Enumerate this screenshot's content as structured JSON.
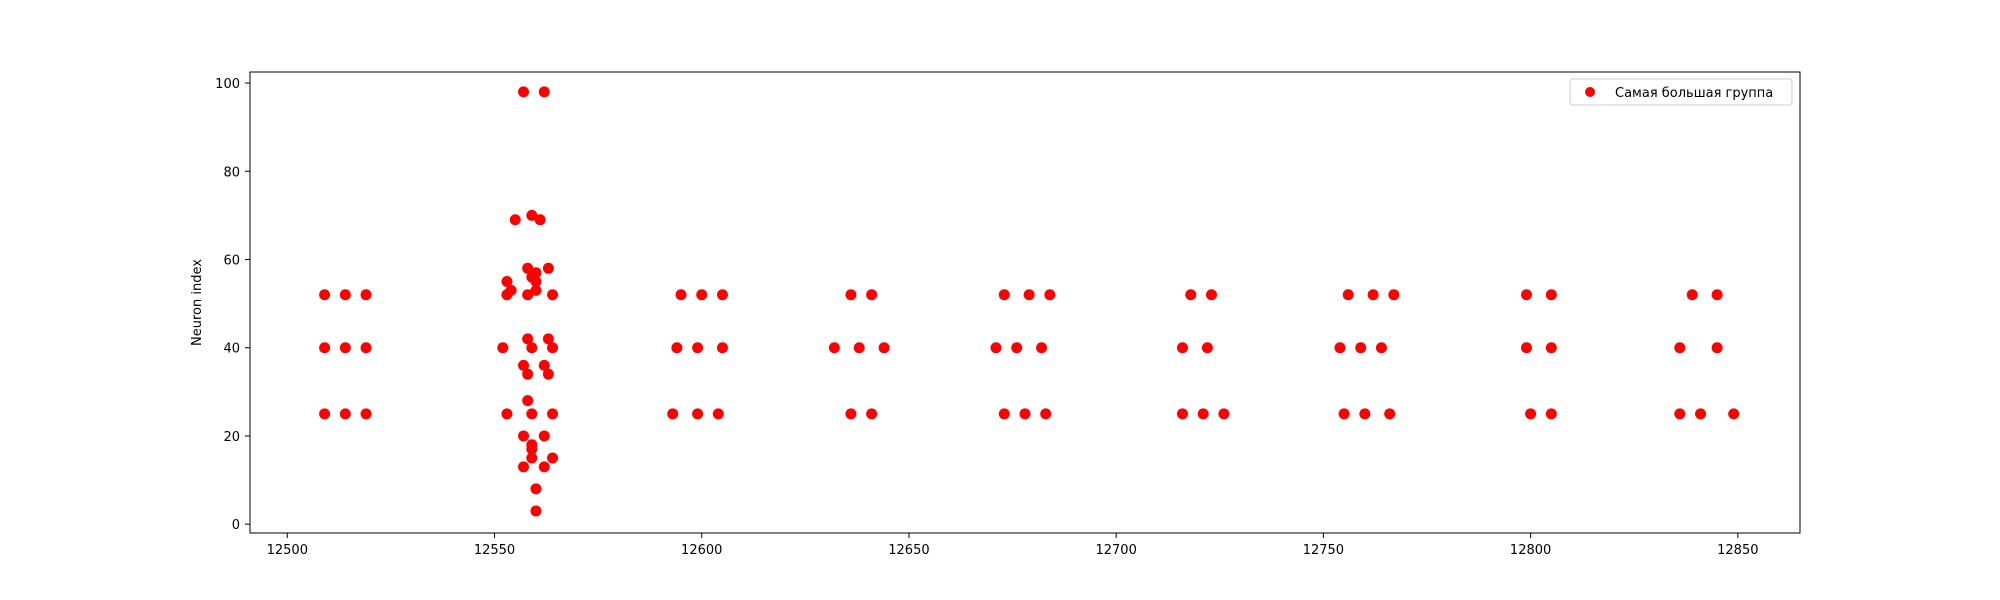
{
  "chart_data": {
    "type": "scatter",
    "title": "",
    "xlabel": "",
    "ylabel": "Neuron index",
    "xlim": [
      12491,
      12865
    ],
    "ylim": [
      -2,
      102.5
    ],
    "xticks": [
      12500,
      12550,
      12600,
      12650,
      12700,
      12750,
      12800,
      12850
    ],
    "yticks": [
      0,
      20,
      40,
      60,
      80,
      100
    ],
    "grid": false,
    "legend": {
      "position": "top-right"
    },
    "series": [
      {
        "name": "Самая большая группа",
        "color": "#ff0000",
        "marker": "circle",
        "points": [
          [
            12509,
            52
          ],
          [
            12514,
            52
          ],
          [
            12519,
            52
          ],
          [
            12509,
            40
          ],
          [
            12514,
            40
          ],
          [
            12519,
            40
          ],
          [
            12509,
            25
          ],
          [
            12514,
            25
          ],
          [
            12519,
            25
          ],
          [
            12557,
            98
          ],
          [
            12562,
            98
          ],
          [
            12559,
            70
          ],
          [
            12561,
            69
          ],
          [
            12555,
            69
          ],
          [
            12558,
            58
          ],
          [
            12563,
            58
          ],
          [
            12559,
            56
          ],
          [
            12560,
            57
          ],
          [
            12560,
            55
          ],
          [
            12553,
            55
          ],
          [
            12560,
            53
          ],
          [
            12554,
            53
          ],
          [
            12553,
            52
          ],
          [
            12558,
            52
          ],
          [
            12564,
            52
          ],
          [
            12558,
            42
          ],
          [
            12563,
            42
          ],
          [
            12552,
            40
          ],
          [
            12559,
            40
          ],
          [
            12564,
            40
          ],
          [
            12557,
            36
          ],
          [
            12562,
            36
          ],
          [
            12558,
            34
          ],
          [
            12563,
            34
          ],
          [
            12558,
            28
          ],
          [
            12553,
            25
          ],
          [
            12559,
            25
          ],
          [
            12564,
            25
          ],
          [
            12557,
            20
          ],
          [
            12562,
            20
          ],
          [
            12559,
            18
          ],
          [
            12559,
            17
          ],
          [
            12559,
            15
          ],
          [
            12564,
            15
          ],
          [
            12557,
            13
          ],
          [
            12562,
            13
          ],
          [
            12560,
            8
          ],
          [
            12560,
            3
          ],
          [
            12595,
            52
          ],
          [
            12600,
            52
          ],
          [
            12605,
            52
          ],
          [
            12594,
            40
          ],
          [
            12599,
            40
          ],
          [
            12605,
            40
          ],
          [
            12593,
            25
          ],
          [
            12599,
            25
          ],
          [
            12604,
            25
          ],
          [
            12636,
            52
          ],
          [
            12641,
            52
          ],
          [
            12632,
            40
          ],
          [
            12638,
            40
          ],
          [
            12644,
            40
          ],
          [
            12636,
            25
          ],
          [
            12641,
            25
          ],
          [
            12673,
            52
          ],
          [
            12679,
            52
          ],
          [
            12684,
            52
          ],
          [
            12671,
            40
          ],
          [
            12676,
            40
          ],
          [
            12682,
            40
          ],
          [
            12673,
            25
          ],
          [
            12678,
            25
          ],
          [
            12683,
            25
          ],
          [
            12718,
            52
          ],
          [
            12723,
            52
          ],
          [
            12716,
            40
          ],
          [
            12722,
            40
          ],
          [
            12716,
            25
          ],
          [
            12721,
            25
          ],
          [
            12726,
            25
          ],
          [
            12756,
            52
          ],
          [
            12762,
            52
          ],
          [
            12767,
            52
          ],
          [
            12754,
            40
          ],
          [
            12759,
            40
          ],
          [
            12764,
            40
          ],
          [
            12755,
            25
          ],
          [
            12760,
            25
          ],
          [
            12766,
            25
          ],
          [
            12799,
            52
          ],
          [
            12805,
            52
          ],
          [
            12799,
            40
          ],
          [
            12805,
            40
          ],
          [
            12800,
            25
          ],
          [
            12805,
            25
          ],
          [
            12839,
            52
          ],
          [
            12845,
            52
          ],
          [
            12836,
            40
          ],
          [
            12845,
            40
          ],
          [
            12836,
            25
          ],
          [
            12841,
            25
          ],
          [
            12849,
            25
          ]
        ]
      }
    ]
  }
}
